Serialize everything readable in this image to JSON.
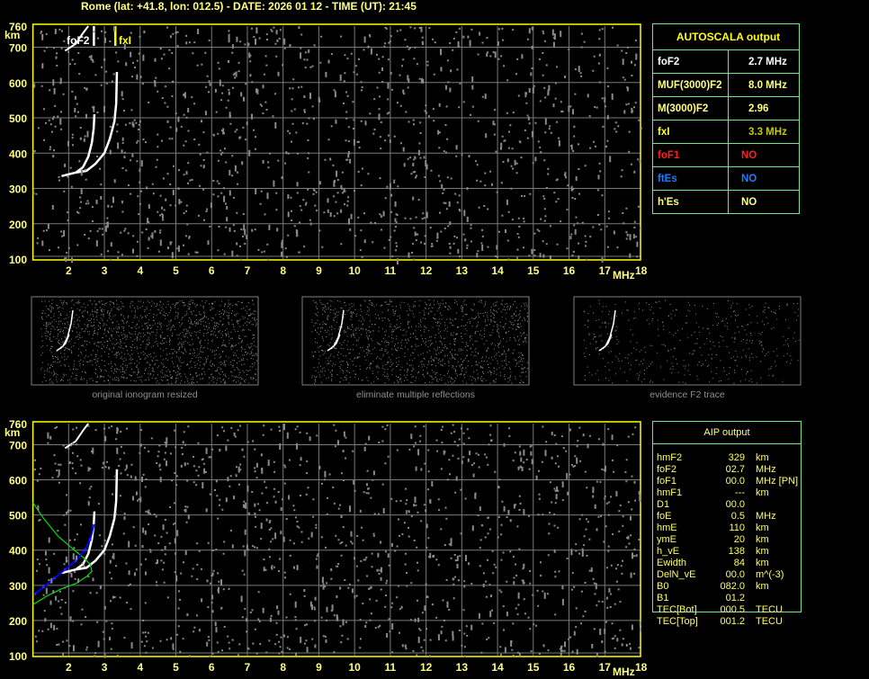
{
  "header": {
    "title": "Rome (lat: +41.8, lon: 012.5) - DATE: 2026 01 12 - TIME (UT): 21:45"
  },
  "colors": {
    "axis": "#ffff00",
    "grid": "#808080",
    "text": "#ffff80",
    "table_border": "#70e890",
    "foF1": "#ff2020",
    "ftEs": "#1e7cff",
    "fxI": "#d0d000",
    "profile": "#00e000",
    "autoscaled_trace": "#0000ff"
  },
  "chart_data": [
    {
      "type": "scatter",
      "name_printed": "",
      "xlabel": "MHz",
      "ylabel": "km",
      "xlim": [
        1,
        18
      ],
      "ylim": [
        100,
        760
      ],
      "grid": true,
      "xticks": [
        "2",
        "3",
        "4",
        "5",
        "6",
        "7",
        "8",
        "9",
        "10",
        "11",
        "12",
        "13",
        "14",
        "15",
        "16",
        "17",
        "18"
      ],
      "yticks": [
        "100",
        "200",
        "300",
        "400",
        "500",
        "600",
        "700",
        "760"
      ],
      "annotations": [
        {
          "label": "foF2",
          "x": 2.7
        },
        {
          "label": "fxI",
          "x": 3.3
        }
      ],
      "traces": {
        "o_trace": [
          [
            1.8,
            335
          ],
          [
            2.0,
            340
          ],
          [
            2.2,
            345
          ],
          [
            2.4,
            360
          ],
          [
            2.55,
            390
          ],
          [
            2.65,
            430
          ],
          [
            2.7,
            470
          ],
          [
            2.72,
            510
          ]
        ],
        "x_trace": [
          [
            2.2,
            345
          ],
          [
            2.5,
            350
          ],
          [
            2.75,
            370
          ],
          [
            3.0,
            400
          ],
          [
            3.15,
            440
          ],
          [
            3.28,
            490
          ],
          [
            3.33,
            540
          ],
          [
            3.35,
            630
          ]
        ],
        "second_hop": [
          [
            1.9,
            690
          ],
          [
            2.2,
            710
          ],
          [
            2.4,
            740
          ],
          [
            2.55,
            760
          ]
        ]
      }
    },
    {
      "type": "scatter",
      "xlabel": "MHz",
      "ylabel": "km",
      "xlim": [
        1,
        18
      ],
      "ylim": [
        100,
        760
      ],
      "grid": true,
      "xticks": [
        "2",
        "3",
        "4",
        "5",
        "6",
        "7",
        "8",
        "9",
        "10",
        "11",
        "12",
        "13",
        "14",
        "15",
        "16",
        "17",
        "18"
      ],
      "yticks": [
        "100",
        "200",
        "300",
        "400",
        "500",
        "600",
        "700",
        "760"
      ],
      "autoscaled_trace": [
        [
          1.05,
          275
        ],
        [
          1.3,
          295
        ],
        [
          1.6,
          320
        ],
        [
          1.9,
          345
        ],
        [
          2.2,
          370
        ],
        [
          2.45,
          400
        ],
        [
          2.6,
          430
        ],
        [
          2.7,
          470
        ]
      ],
      "profile": [
        [
          1.0,
          535
        ],
        [
          1.3,
          490
        ],
        [
          1.7,
          440
        ],
        [
          2.1,
          405
        ],
        [
          2.4,
          380
        ],
        [
          2.6,
          360
        ],
        [
          2.65,
          340
        ],
        [
          2.5,
          325
        ],
        [
          2.2,
          305
        ],
        [
          1.8,
          290
        ],
        [
          1.4,
          270
        ],
        [
          1.0,
          245
        ]
      ]
    }
  ],
  "panels": [
    {
      "caption": "original ionogram resized"
    },
    {
      "caption": "eliminate multiple reflections"
    },
    {
      "caption": "evidence F2 trace"
    }
  ],
  "autoscala": {
    "title": "AUTOSCALA output",
    "rows": [
      {
        "label": "foF2",
        "value": "2.7 MHz",
        "color": "#ffffff"
      },
      {
        "label": "MUF(3000)F2",
        "value": "8.0 MHz",
        "color": "#ffff80"
      },
      {
        "label": "M(3000)F2",
        "value": "2.96",
        "color": "#ffff80"
      },
      {
        "label": "fxI",
        "value": "3.3 MHz",
        "color": "#ffff40",
        "vcolor": "#c8c800"
      },
      {
        "label": "foF1",
        "value": "NO",
        "color": "#ff2020"
      },
      {
        "label": "ftEs",
        "value": "NO",
        "color": "#1e7cff"
      },
      {
        "label": "h'Es",
        "value": "NO",
        "color": "#ffff80"
      }
    ]
  },
  "aip": {
    "title": "AIP output",
    "rows": [
      [
        "hmF2",
        "329",
        "km"
      ],
      [
        "foF2",
        "02.7",
        "MHz"
      ],
      [
        "foF1",
        "00.0",
        "MHz   [PN]"
      ],
      [
        "hmF1",
        "---",
        "km"
      ],
      [
        "D1",
        "00.0",
        ""
      ],
      [
        "foE",
        "0.5",
        "MHz"
      ],
      [
        "hmE",
        "110",
        "km"
      ],
      [
        "ymE",
        "20",
        "km"
      ],
      [
        "h_vE",
        "138",
        "km"
      ],
      [
        "Ewidth",
        "84",
        "km"
      ],
      [
        "DelN_vE",
        "00.0",
        "m^(-3)"
      ],
      [
        "B0",
        "082.0",
        "km"
      ],
      [
        "B1",
        "01.2",
        ""
      ],
      [
        "TEC[Bot]",
        "000.5",
        "TECU"
      ],
      [
        "TEC[Top]",
        "001.2",
        "TECU"
      ]
    ]
  }
}
